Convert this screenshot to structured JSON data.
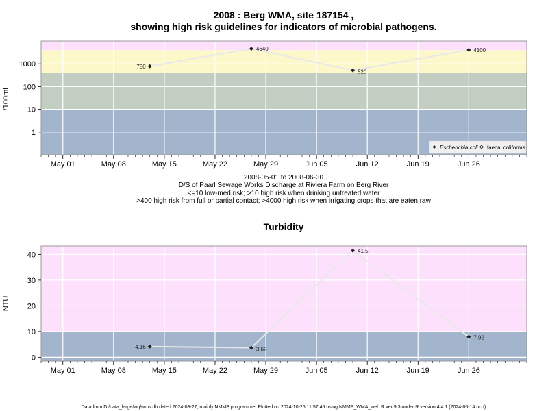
{
  "chart_data": [
    {
      "type": "line",
      "title_line1": "2008 : Berg WMA, site 187154 ,",
      "title_line2": "showing high risk guidelines for indicators of microbial pathogens.",
      "ylabel": "/100mL",
      "y_scale": "log",
      "ylim": [
        0.1,
        10000
      ],
      "y_ticks": [
        1,
        10,
        100,
        1000
      ],
      "y_tick_labels": [
        "1",
        "10",
        "100",
        "1000"
      ],
      "xlim": [
        "2008-04-28",
        "2008-07-04"
      ],
      "x_ticks": [
        "2008-05-01",
        "2008-05-08",
        "2008-05-15",
        "2008-05-22",
        "2008-05-29",
        "2008-06-05",
        "2008-06-12",
        "2008-06-19",
        "2008-06-26"
      ],
      "x_tick_labels": [
        "May 01",
        "May 08",
        "May 15",
        "May 22",
        "May 29",
        "Jun 05",
        "Jun 12",
        "Jun 19",
        "Jun 26"
      ],
      "grid": true,
      "bands": [
        {
          "from": 0.1,
          "to": 10,
          "color": "#a2b5cd"
        },
        {
          "from": 10,
          "to": 400,
          "color": "#c2cec1"
        },
        {
          "from": 400,
          "to": 4000,
          "color": "#fdf8c9"
        },
        {
          "from": 4000,
          "to": 10000,
          "color": "#fde0fc"
        }
      ],
      "series": [
        {
          "name": "Escherichia coli",
          "color": "#e8e8e8",
          "marker": "filled-diamond",
          "x": [
            "2008-05-13",
            "2008-05-27",
            "2008-06-10",
            "2008-06-26"
          ],
          "y": [
            780,
            4640,
            520,
            4100
          ],
          "labels": [
            "780",
            "4640",
            "520",
            "4100"
          ]
        }
      ],
      "legend": {
        "position": "bottom-right",
        "items": [
          {
            "label": "Escherichia coli",
            "marker": "filled-diamond",
            "italic": true
          },
          {
            "label": "faecal coliforms",
            "marker": "open-diamond",
            "italic": false
          }
        ]
      },
      "notes": [
        "2008-05-01 to 2008-06-30",
        "D/S of Paarl Sewage Works Discharge at Riviera Farm on Berg River",
        "<=10 low-med risk; >10 high risk when drinking untreated water",
        ">400 high risk from full or partial contact; >4000 high risk when irrigating crops that are eaten raw"
      ]
    },
    {
      "type": "line",
      "title": "Turbidity",
      "ylabel": "NTU",
      "ylim": [
        -1.5,
        43.3
      ],
      "y_ticks": [
        0,
        10,
        20,
        30,
        40
      ],
      "y_tick_labels": [
        "0",
        "10",
        "20",
        "30",
        "40"
      ],
      "xlim": [
        "2008-04-28",
        "2008-07-04"
      ],
      "x_ticks": [
        "2008-05-01",
        "2008-05-08",
        "2008-05-15",
        "2008-05-22",
        "2008-05-29",
        "2008-06-05",
        "2008-06-12",
        "2008-06-19",
        "2008-06-26"
      ],
      "x_tick_labels": [
        "May 01",
        "May 08",
        "May 15",
        "May 22",
        "May 29",
        "Jun 05",
        "Jun 12",
        "Jun 19",
        "Jun 26"
      ],
      "grid": true,
      "bands": [
        {
          "from": -1.5,
          "to": 10,
          "color": "#a2b5cd"
        },
        {
          "from": 10,
          "to": 43.3,
          "color": "#fde0fc"
        }
      ],
      "series": [
        {
          "color": "#e8e8e8",
          "marker": "filled-diamond",
          "x": [
            "2008-05-13",
            "2008-05-27",
            "2008-06-10",
            "2008-06-26"
          ],
          "y": [
            4.16,
            3.69,
            41.5,
            7.92
          ],
          "labels": [
            "4.16",
            "3.69",
            "41.5",
            "7.92"
          ]
        }
      ]
    }
  ],
  "footer": "Data from D:/data_large/wq/wms.db dated 2024-08-27, mainly NMMP programme. Plotted on 2024-10-25 11:57:45 using NMMP_WMA_web.R ver 9.3 under R version 4.4.1 (2024-06-14 ucrt)"
}
